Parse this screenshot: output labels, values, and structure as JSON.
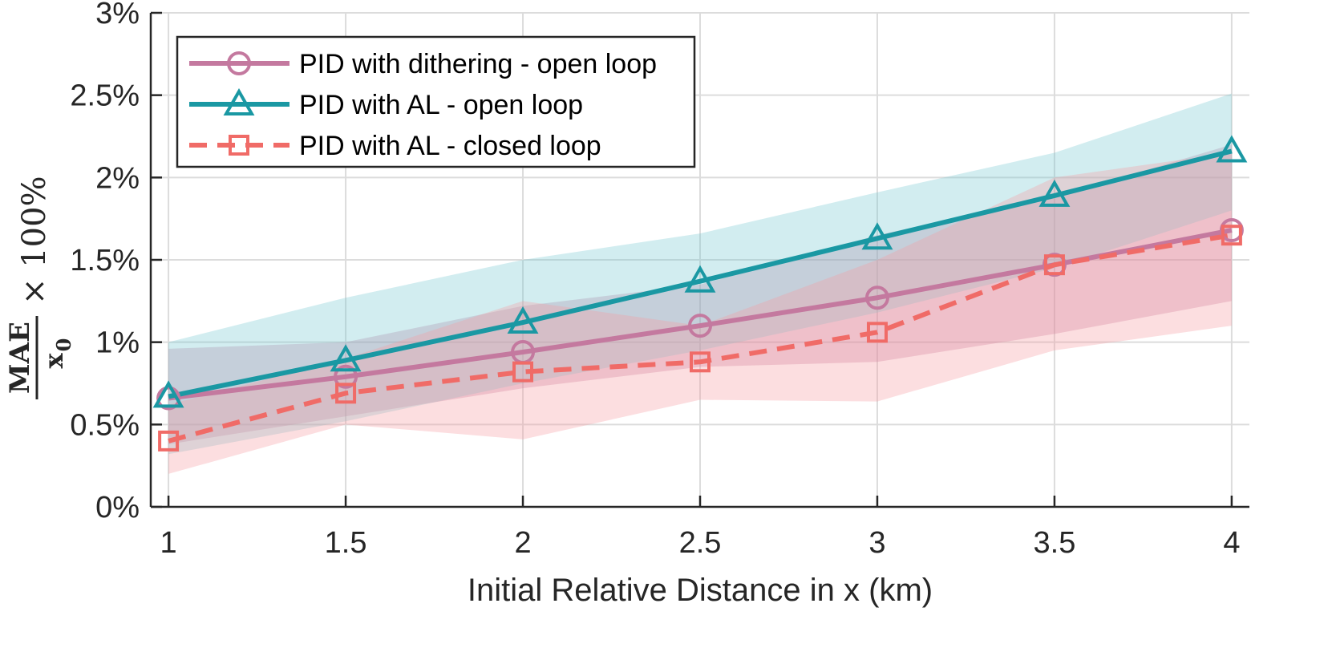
{
  "chart_data": {
    "type": "line",
    "title": "",
    "xlabel": "Initial Relative Distance in x (km)",
    "ylabel": {
      "numerator": "MAE",
      "denominator": "x",
      "denominator_subscript": "0",
      "suffix": "× 100%"
    },
    "x": [
      1,
      1.5,
      2,
      2.5,
      3,
      3.5,
      4
    ],
    "x_tick_labels": [
      "1",
      "1.5",
      "2",
      "2.5",
      "3",
      "3.5",
      "4"
    ],
    "xlim": [
      0.95,
      4.05
    ],
    "y_ticks": [
      0,
      0.5,
      1,
      1.5,
      2,
      2.5,
      3
    ],
    "y_tick_labels": [
      "0%",
      "0.5%",
      "1%",
      "1.5%",
      "2%",
      "2.5%",
      "3%"
    ],
    "ylim": [
      0,
      3
    ],
    "grid": true,
    "legend_position": "top-left",
    "series": [
      {
        "name": "PID with dithering - open loop",
        "values": [
          0.66,
          0.79,
          0.94,
          1.1,
          1.27,
          1.47,
          1.68
        ],
        "band_low": [
          0.38,
          0.55,
          0.72,
          0.85,
          0.88,
          1.05,
          1.25
        ],
        "band_high": [
          0.96,
          1.0,
          1.22,
          1.35,
          1.65,
          1.88,
          2.2
        ],
        "color": "#C4799F",
        "band_color": "#C4799F",
        "marker": "circle",
        "dash": "solid"
      },
      {
        "name": "PID with AL - open loop",
        "values": [
          0.67,
          0.89,
          1.12,
          1.37,
          1.63,
          1.89,
          2.16
        ],
        "band_low": [
          0.32,
          0.52,
          0.75,
          0.95,
          1.18,
          1.45,
          1.8
        ],
        "band_high": [
          1.0,
          1.27,
          1.5,
          1.66,
          1.91,
          2.15,
          2.51
        ],
        "color": "#1A98A3",
        "band_color": "#76C7D0",
        "marker": "triangle",
        "dash": "solid"
      },
      {
        "name": "PID with AL - closed loop",
        "values": [
          0.4,
          0.69,
          0.82,
          0.88,
          1.06,
          1.47,
          1.65
        ],
        "band_low": [
          0.2,
          0.5,
          0.41,
          0.65,
          0.64,
          0.95,
          1.1
        ],
        "band_high": [
          0.62,
          0.9,
          1.25,
          1.1,
          1.5,
          2.0,
          2.15
        ],
        "color": "#F06B67",
        "band_color": "#F59AA0",
        "marker": "square",
        "dash": "dashed"
      }
    ]
  }
}
